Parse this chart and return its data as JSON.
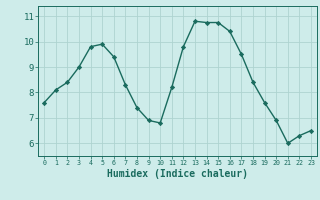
{
  "x": [
    0,
    1,
    2,
    3,
    4,
    5,
    6,
    7,
    8,
    9,
    10,
    11,
    12,
    13,
    14,
    15,
    16,
    17,
    18,
    19,
    20,
    21,
    22,
    23
  ],
  "y": [
    7.6,
    8.1,
    8.4,
    9.0,
    9.8,
    9.9,
    9.4,
    8.3,
    7.4,
    6.9,
    6.8,
    8.2,
    9.8,
    10.8,
    10.75,
    10.75,
    10.4,
    9.5,
    8.4,
    7.6,
    6.9,
    6.0,
    6.3,
    6.5
  ],
  "line_color": "#1a6b5e",
  "marker": "D",
  "markersize": 2.2,
  "linewidth": 1.0,
  "bg_color": "#ceecea",
  "grid_color": "#aed4d0",
  "xlabel": "Humidex (Indice chaleur)",
  "xlabel_fontsize": 7,
  "tick_fontsize": 6.5,
  "ylim": [
    5.5,
    11.4
  ],
  "xlim": [
    -0.5,
    23.5
  ],
  "yticks": [
    6,
    7,
    8,
    9,
    10,
    11
  ],
  "xticks": [
    0,
    1,
    2,
    3,
    4,
    5,
    6,
    7,
    8,
    9,
    10,
    11,
    12,
    13,
    14,
    15,
    16,
    17,
    18,
    19,
    20,
    21,
    22,
    23
  ]
}
